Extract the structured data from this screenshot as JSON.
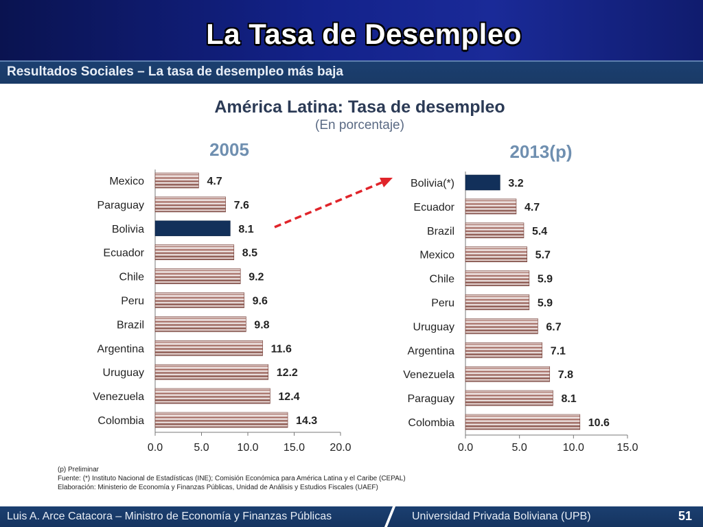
{
  "slide_title": "La Tasa de Desempleo",
  "subtitle": "Resultados Sociales – La tasa de desempleo más baja",
  "colors": {
    "top_band": "#13228a",
    "subtitle_band": "#1b3f70",
    "highlight_bar": "#12305a",
    "bar_stripe_dark": "#7a3e34",
    "arrow": "#e0242a"
  },
  "chart_data": [
    {
      "type": "bar",
      "orientation": "horizontal",
      "title": "América Latina: Tasa de desempleo",
      "subtitle": "(En porcentaje)",
      "panel_title": "2005",
      "categories": [
        "Mexico",
        "Paraguay",
        "Bolivia",
        "Ecuador",
        "Chile",
        "Peru",
        "Brazil",
        "Argentina",
        "Uruguay",
        "Venezuela",
        "Colombia"
      ],
      "values": [
        4.7,
        7.6,
        8.1,
        8.5,
        9.2,
        9.6,
        9.8,
        11.6,
        12.2,
        12.4,
        14.3
      ],
      "highlight": "Bolivia",
      "xlim": [
        0,
        20
      ],
      "xticks": [
        "0.0",
        "5.0",
        "10.0",
        "15.0",
        "20.0"
      ],
      "grid": false
    },
    {
      "type": "bar",
      "orientation": "horizontal",
      "panel_title": "2013(p)",
      "categories": [
        "Bolivia(*)",
        "Ecuador",
        "Brazil",
        "Mexico",
        "Chile",
        "Peru",
        "Uruguay",
        "Argentina",
        "Venezuela",
        "Paraguay",
        "Colombia"
      ],
      "values": [
        3.2,
        4.7,
        5.4,
        5.7,
        5.9,
        5.9,
        6.7,
        7.1,
        7.8,
        8.1,
        10.6
      ],
      "highlight": "Bolivia(*)",
      "xlim": [
        0,
        15
      ],
      "xticks": [
        "0.0",
        "5.0",
        "10.0",
        "15.0"
      ],
      "grid": false
    }
  ],
  "footnotes": [
    "(p) Preliminar",
    "Fuente: (*) Instituto Nacional de Estadísticas (INE); Comisión Económica para América Latina y el Caribe (CEPAL)",
    "Elaboración: Ministerio de Economía y Finanzas Públicas, Unidad de Análisis y Estudios Fiscales (UAEF)"
  ],
  "footer": {
    "left": "Luis A. Arce Catacora – Ministro de Economía y Finanzas Públicas",
    "right": "Universidad Privada Boliviana (UPB)",
    "page_number": "51"
  }
}
